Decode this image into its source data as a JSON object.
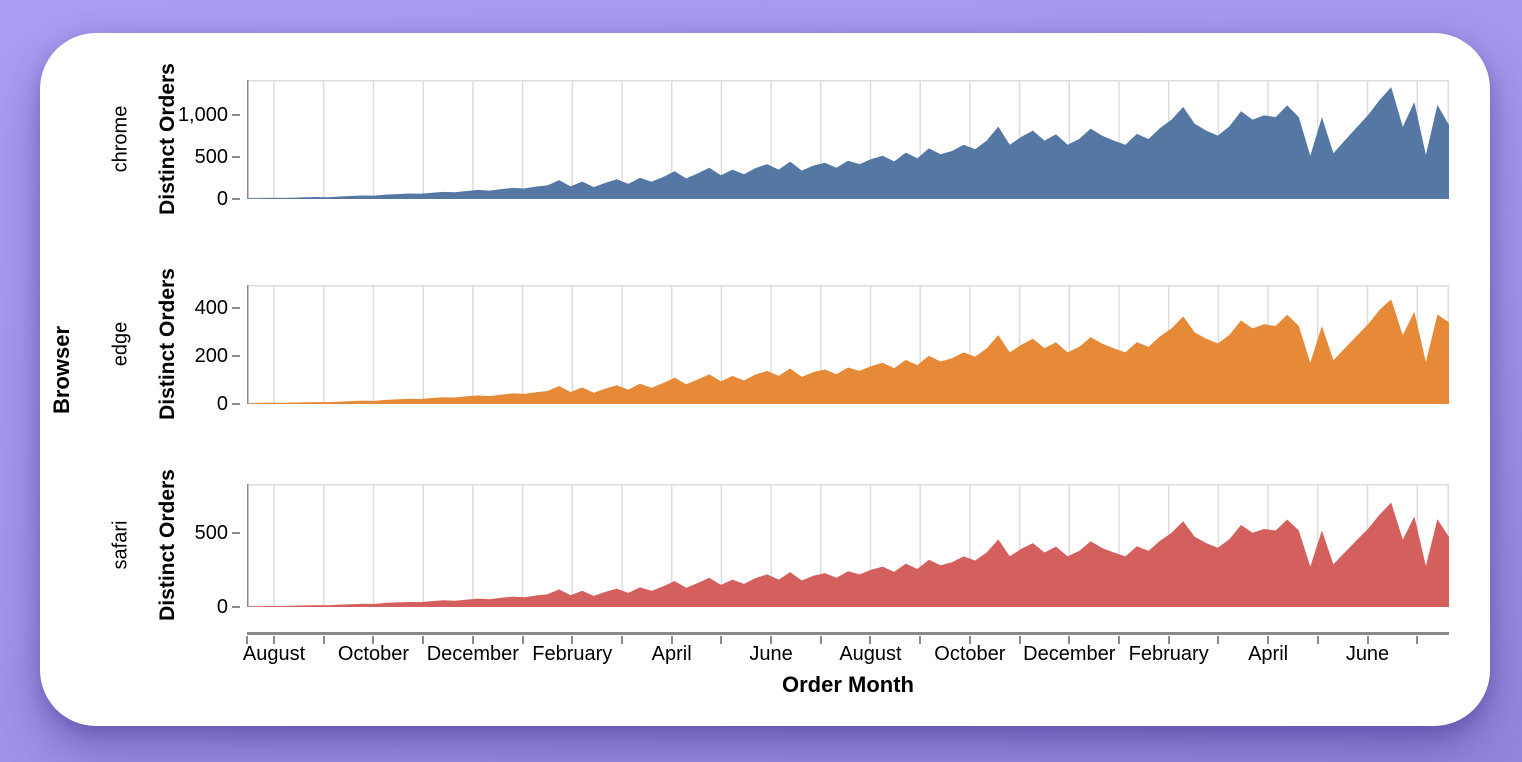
{
  "page": {
    "background_color": "#a395e9",
    "card_color": "#ffffff"
  },
  "chart_data": {
    "type": "area",
    "layout": "faceted-rows",
    "facet_title": "Browser",
    "x_title": "Order Month",
    "y_title": "Distinct Orders",
    "x_unit": "weekly points spanning 24 months",
    "grid": true,
    "legend_position": "none",
    "axis_colors": {
      "domain": "#8a8a8a",
      "grid": "#dddddd",
      "text": "#000000"
    },
    "x_start_frac": 0.0225,
    "x_month_frac": 0.04135,
    "x_month_labels": [
      "August",
      "",
      "October",
      "",
      "December",
      "",
      "February",
      "",
      "April",
      "",
      "June",
      "",
      "August",
      "",
      "October",
      "",
      "December",
      "",
      "February",
      "",
      "April",
      "",
      "June",
      ""
    ],
    "facets": [
      {
        "name": "chrome",
        "color": "#5477a3",
        "ymax": 1417,
        "yticks": [
          {
            "v": 0,
            "label": "0"
          },
          {
            "v": 500,
            "label": "500"
          },
          {
            "v": 1000,
            "label": "1,000"
          }
        ],
        "values": [
          8,
          10,
          13,
          12,
          16,
          20,
          24,
          22,
          30,
          36,
          42,
          40,
          52,
          58,
          65,
          62,
          75,
          85,
          80,
          95,
          108,
          100,
          118,
          132,
          125,
          148,
          162,
          225,
          150,
          208,
          142,
          192,
          235,
          180,
          252,
          205,
          262,
          330,
          245,
          305,
          372,
          282,
          350,
          295,
          368,
          415,
          350,
          445,
          338,
          398,
          432,
          372,
          455,
          415,
          475,
          515,
          448,
          552,
          485,
          602,
          532,
          572,
          645,
          592,
          695,
          862,
          645,
          742,
          815,
          695,
          772,
          645,
          715,
          838,
          752,
          695,
          645,
          775,
          715,
          845,
          945,
          1095,
          895,
          815,
          755,
          865,
          1045,
          945,
          995,
          975,
          1115,
          975,
          515,
          975,
          545,
          700,
          850,
          1000,
          1180,
          1333,
          858,
          1155,
          525,
          1120,
          880
        ]
      },
      {
        "name": "edge",
        "color": "#e78a38",
        "ymax": 496,
        "yticks": [
          {
            "v": 0,
            "label": "0"
          },
          {
            "v": 200,
            "label": "200"
          },
          {
            "v": 400,
            "label": "400"
          }
        ],
        "values": [
          3,
          4,
          5,
          4,
          6,
          7,
          8,
          8,
          10,
          12,
          14,
          13,
          17,
          19,
          22,
          21,
          25,
          28,
          27,
          32,
          36,
          33,
          39,
          44,
          42,
          49,
          54,
          75,
          50,
          69,
          47,
          64,
          78,
          60,
          84,
          68,
          87,
          110,
          82,
          102,
          124,
          94,
          117,
          98,
          123,
          138,
          117,
          148,
          113,
          133,
          144,
          124,
          152,
          138,
          158,
          172,
          149,
          184,
          162,
          201,
          177,
          191,
          215,
          197,
          232,
          287,
          215,
          247,
          272,
          232,
          257,
          215,
          238,
          279,
          251,
          232,
          215,
          258,
          238,
          282,
          315,
          365,
          298,
          272,
          252,
          288,
          348,
          315,
          332,
          325,
          372,
          325,
          172,
          325,
          182,
          233,
          283,
          333,
          393,
          437,
          286,
          385,
          175,
          373,
          340
        ]
      },
      {
        "name": "safari",
        "color": "#d4605d",
        "ymax": 831,
        "yticks": [
          {
            "v": 0,
            "label": "0"
          },
          {
            "v": 500,
            "label": "500"
          }
        ],
        "values": [
          4,
          5,
          7,
          6,
          8,
          11,
          13,
          12,
          16,
          19,
          22,
          21,
          28,
          31,
          34,
          33,
          40,
          45,
          42,
          50,
          57,
          53,
          62,
          70,
          66,
          78,
          86,
          119,
          80,
          110,
          75,
          102,
          124,
          95,
          133,
          109,
          139,
          175,
          130,
          162,
          197,
          149,
          185,
          156,
          195,
          220,
          185,
          236,
          179,
          211,
          229,
          197,
          241,
          220,
          252,
          273,
          237,
          293,
          257,
          319,
          282,
          303,
          342,
          314,
          368,
          457,
          342,
          393,
          432,
          368,
          409,
          342,
          379,
          444,
          398,
          368,
          342,
          411,
          379,
          448,
          501,
          580,
          474,
          432,
          400,
          458,
          554,
          501,
          527,
          517,
          591,
          517,
          273,
          517,
          289,
          370,
          450,
          529,
          625,
          705,
          455,
          612,
          278,
          594,
          473
        ]
      }
    ]
  }
}
